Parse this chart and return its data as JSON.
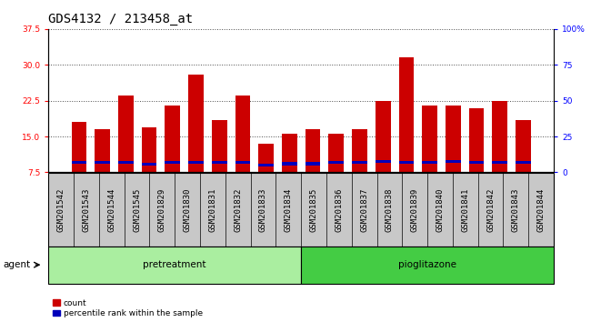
{
  "title": "GDS4132 / 213458_at",
  "samples": [
    "GSM201542",
    "GSM201543",
    "GSM201544",
    "GSM201545",
    "GSM201829",
    "GSM201830",
    "GSM201831",
    "GSM201832",
    "GSM201833",
    "GSM201834",
    "GSM201835",
    "GSM201836",
    "GSM201837",
    "GSM201838",
    "GSM201839",
    "GSM201840",
    "GSM201841",
    "GSM201842",
    "GSM201843",
    "GSM201844"
  ],
  "count_values": [
    18.0,
    16.5,
    23.5,
    17.0,
    21.5,
    28.0,
    18.5,
    23.5,
    13.5,
    15.5,
    16.5,
    15.5,
    16.5,
    22.5,
    31.5,
    21.5,
    21.5,
    21.0,
    22.5,
    18.5
  ],
  "blue_center_values": [
    9.5,
    9.5,
    9.5,
    9.2,
    9.5,
    9.5,
    9.5,
    9.5,
    9.0,
    9.3,
    9.3,
    9.5,
    9.5,
    9.8,
    9.5,
    9.5,
    9.8,
    9.5,
    9.5,
    9.5
  ],
  "blue_bar_height": 0.6,
  "pretreatment_samples": 10,
  "pioglitazone_samples": 10,
  "ylim_left": [
    7.5,
    37.5
  ],
  "yticks_left": [
    7.5,
    15.0,
    22.5,
    30.0,
    37.5
  ],
  "ylim_right": [
    0,
    100
  ],
  "yticks_right": [
    0,
    25,
    50,
    75,
    100
  ],
  "bar_color_red": "#cc0000",
  "bar_color_blue": "#0000bb",
  "bar_width": 0.65,
  "bg_color_plot": "#ffffff",
  "bg_color_tick": "#c8c8c8",
  "pretreatment_color": "#aaeea0",
  "pioglitazone_color": "#44cc44",
  "agent_label": "agent",
  "pretreatment_label": "pretreatment",
  "pioglitazone_label": "pioglitazone",
  "legend_count": "count",
  "legend_percentile": "percentile rank within the sample",
  "title_fontsize": 10,
  "tick_fontsize": 6.5,
  "label_fontsize": 7.5,
  "grid_style": "dotted",
  "grid_color": "#000000",
  "grid_alpha": 0.7
}
